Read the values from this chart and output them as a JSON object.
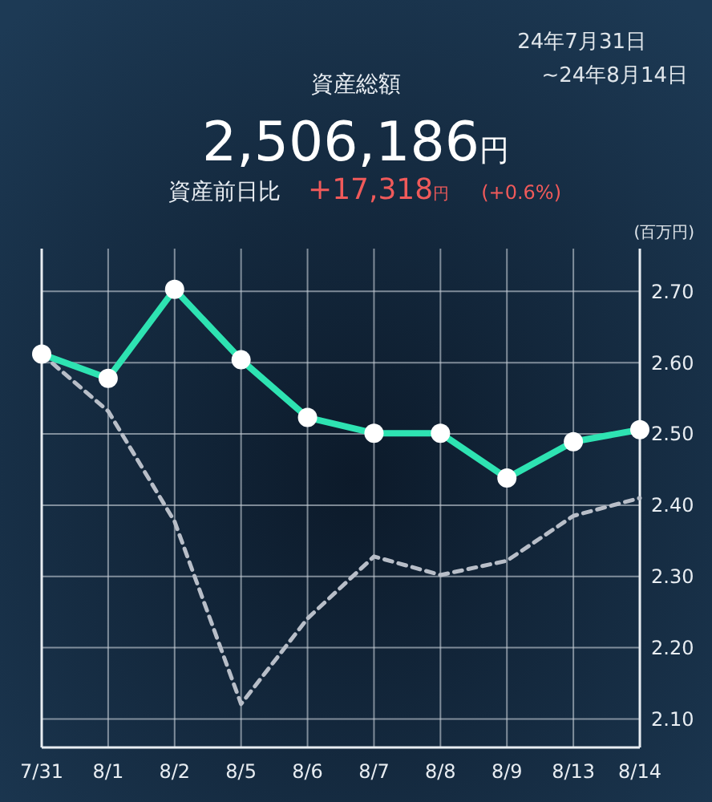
{
  "chart_data": {
    "type": "line",
    "title": "資産総額",
    "subtitle": "2,506,186円",
    "ylabel": "(百万円)",
    "annotations": [
      "24年7月31日",
      "~24年8月14日",
      "資産前日比",
      "+17,318円",
      "(+0.6%)"
    ],
    "categories": [
      "7/31",
      "8/1",
      "8/2",
      "8/5",
      "8/6",
      "8/7",
      "8/8",
      "8/9",
      "8/13",
      "8/14"
    ],
    "series": [
      {
        "color": "#b8bec8",
        "line_style": "dashed",
        "marker": "none",
        "values": [
          2.612,
          2.532,
          2.377,
          2.121,
          2.241,
          2.328,
          2.302,
          2.322,
          2.385,
          2.41
        ]
      },
      {
        "color": "#2ee3b2",
        "line_style": "solid",
        "marker": "circle",
        "values": [
          2.612,
          2.578,
          2.703,
          2.604,
          2.523,
          2.501,
          2.501,
          2.438,
          2.489,
          2.506
        ]
      }
    ],
    "ylim": [
      2.06,
      2.76
    ],
    "yticks": [
      {
        "value": 2.1,
        "label": "2.10"
      },
      {
        "value": 2.2,
        "label": "2.20"
      },
      {
        "value": 2.3,
        "label": "2.30"
      },
      {
        "value": 2.4,
        "label": "2.40"
      },
      {
        "value": 2.5,
        "label": "2.50"
      },
      {
        "value": 2.6,
        "label": "2.60"
      },
      {
        "value": 2.7,
        "label": "2.70"
      }
    ],
    "grid": true
  }
}
